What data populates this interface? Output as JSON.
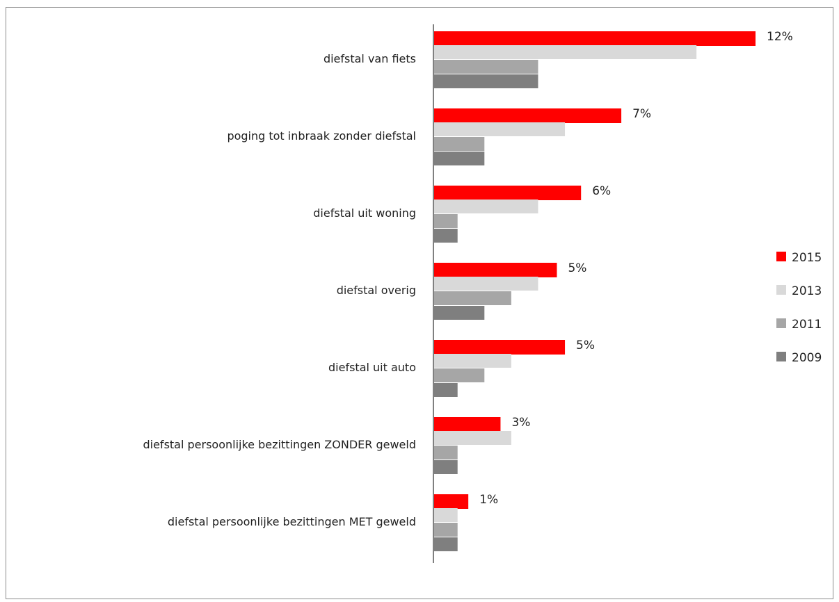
{
  "chart_data": {
    "type": "bar",
    "orientation": "horizontal",
    "categories": [
      "diefstal van fiets",
      "poging tot inbraak zonder diefstal",
      "diefstal uit woning",
      "diefstal overig",
      "diefstal uit auto",
      "diefstal persoonlijke bezittingen ZONDER geweld",
      "diefstal persoonlijke bezittingen MET geweld"
    ],
    "series": [
      {
        "name": "2015",
        "color": "#ff0000",
        "values": [
          12,
          7,
          5.5,
          4.6,
          4.9,
          2.5,
          1.3
        ]
      },
      {
        "name": "2013",
        "color": "#d9d9d9",
        "values": [
          9.8,
          4.9,
          3.9,
          3.9,
          2.9,
          2.9,
          0.9
        ]
      },
      {
        "name": "2011",
        "color": "#a6a6a6",
        "values": [
          3.9,
          1.9,
          0.9,
          2.9,
          1.9,
          0.9,
          0.9
        ]
      },
      {
        "name": "2009",
        "color": "#7f7f7f",
        "values": [
          3.9,
          1.9,
          0.9,
          1.9,
          0.9,
          0.9,
          0.9
        ]
      }
    ],
    "data_labels": [
      "12%",
      "7%",
      "6%",
      "5%",
      "5%",
      "3%",
      "1%"
    ],
    "xlim": [
      0,
      12.5
    ],
    "legend_position": "right",
    "grid": false
  }
}
